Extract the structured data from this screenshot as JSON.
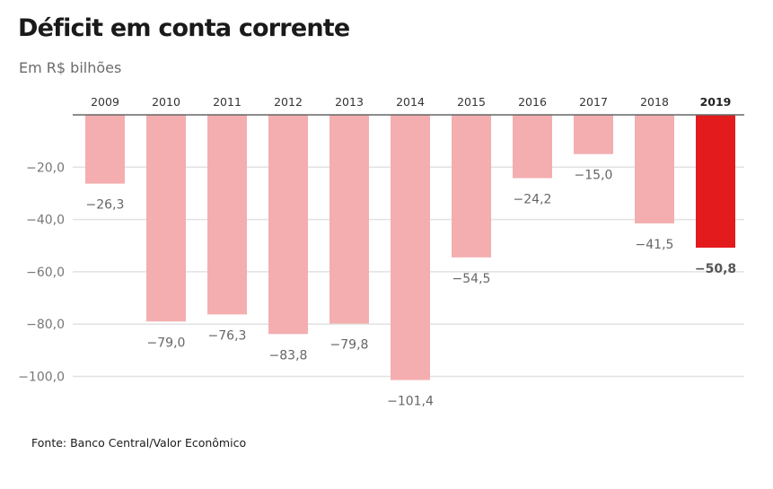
{
  "chart_data": {
    "type": "bar",
    "title": "Déficit em conta corrente",
    "subtitle": "Em R$ bilhões",
    "source": "Fonte: Banco Central/Valor Econômico",
    "categories": [
      "2009",
      "2010",
      "2011",
      "2012",
      "2013",
      "2014",
      "2015",
      "2016",
      "2017",
      "2018",
      "2019"
    ],
    "values": [
      -26.3,
      -79.0,
      -76.3,
      -83.8,
      -79.8,
      -101.4,
      -54.5,
      -24.2,
      -15.0,
      -41.5,
      -50.8
    ],
    "value_labels": [
      "−26,3",
      "−79,0",
      "−76,3",
      "−83,8",
      "−79,8",
      "−101,4",
      "−54,5",
      "−24,2",
      "−15,0",
      "−41,5",
      "−50,8"
    ],
    "highlight_category": "2019",
    "yticks": [
      -20,
      -40,
      -60,
      -80,
      -100
    ],
    "ytick_labels": [
      "−20,0",
      "−40,0",
      "−60,0",
      "−80,0",
      "−100,0"
    ],
    "ylim": [
      -110,
      0
    ],
    "xlabel": "",
    "ylabel": "",
    "grid": true,
    "colors": {
      "bar": "#f4aeb0",
      "highlight": "#e31b1d",
      "axis": "#666666",
      "grid": "#e2e2e2"
    }
  }
}
